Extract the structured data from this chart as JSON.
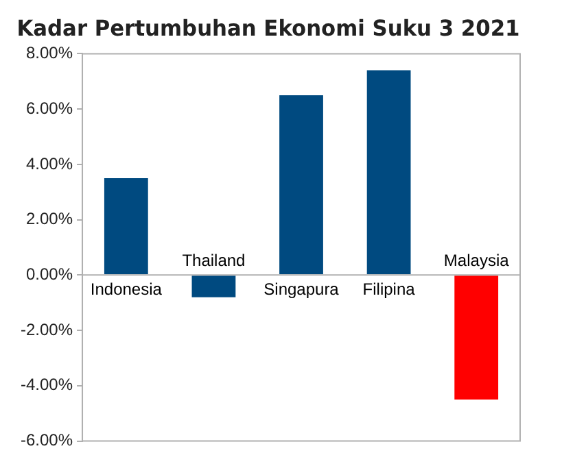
{
  "chart_data": {
    "type": "bar",
    "title": "Kadar Pertumbuhan Ekonomi Suku 3 2021",
    "categories": [
      "Indonesia",
      "Thailand",
      "Singapura",
      "Filipina",
      "Malaysia"
    ],
    "values": [
      3.5,
      -0.8,
      6.5,
      7.4,
      -4.5
    ],
    "colors": [
      "#004a80",
      "#004a80",
      "#004a80",
      "#004a80",
      "#ff0000"
    ],
    "ylim": [
      -6,
      8
    ],
    "yticks": [
      {
        "value": -6,
        "label": "-6.00%"
      },
      {
        "value": -4,
        "label": "-4.00%"
      },
      {
        "value": -2,
        "label": "-2.00%"
      },
      {
        "value": 0,
        "label": "0.00%"
      },
      {
        "value": 2,
        "label": "2.00%"
      },
      {
        "value": 4,
        "label": "4.00%"
      },
      {
        "value": 6,
        "label": "6.00%"
      },
      {
        "value": 8,
        "label": "8.00%"
      }
    ],
    "grid": false,
    "legend": false
  }
}
